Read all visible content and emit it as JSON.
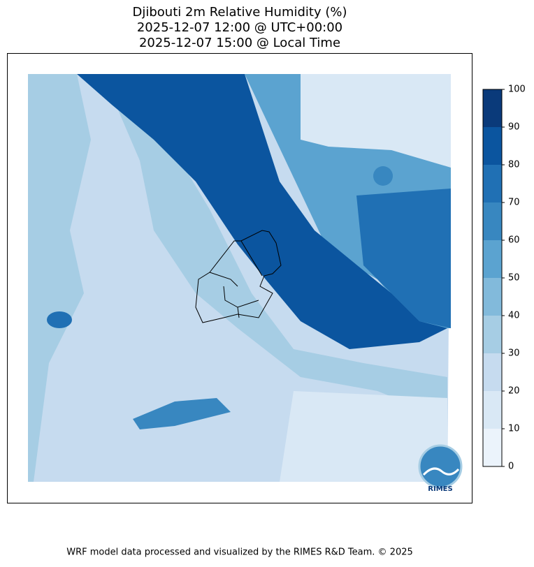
{
  "title": [
    "Djibouti 2m Relative Humidity (%)",
    "2025-12-07 12:00 @ UTC+00:00",
    "2025-12-07 15:00 @ Local Time"
  ],
  "colorbar": {
    "ticks": [
      0,
      10,
      20,
      30,
      40,
      50,
      60,
      70,
      80,
      90,
      100
    ],
    "colors": [
      "#ebf3fb",
      "#d9e8f5",
      "#c6dbef",
      "#a6cde4",
      "#82badb",
      "#5ba3d0",
      "#3887c0",
      "#2070b4",
      "#0b559f",
      "#0a3a7a"
    ]
  },
  "logo": "RIMES",
  "footer": "WRF model data processed and visualized by the RIMES R&D Team. © 2025"
}
